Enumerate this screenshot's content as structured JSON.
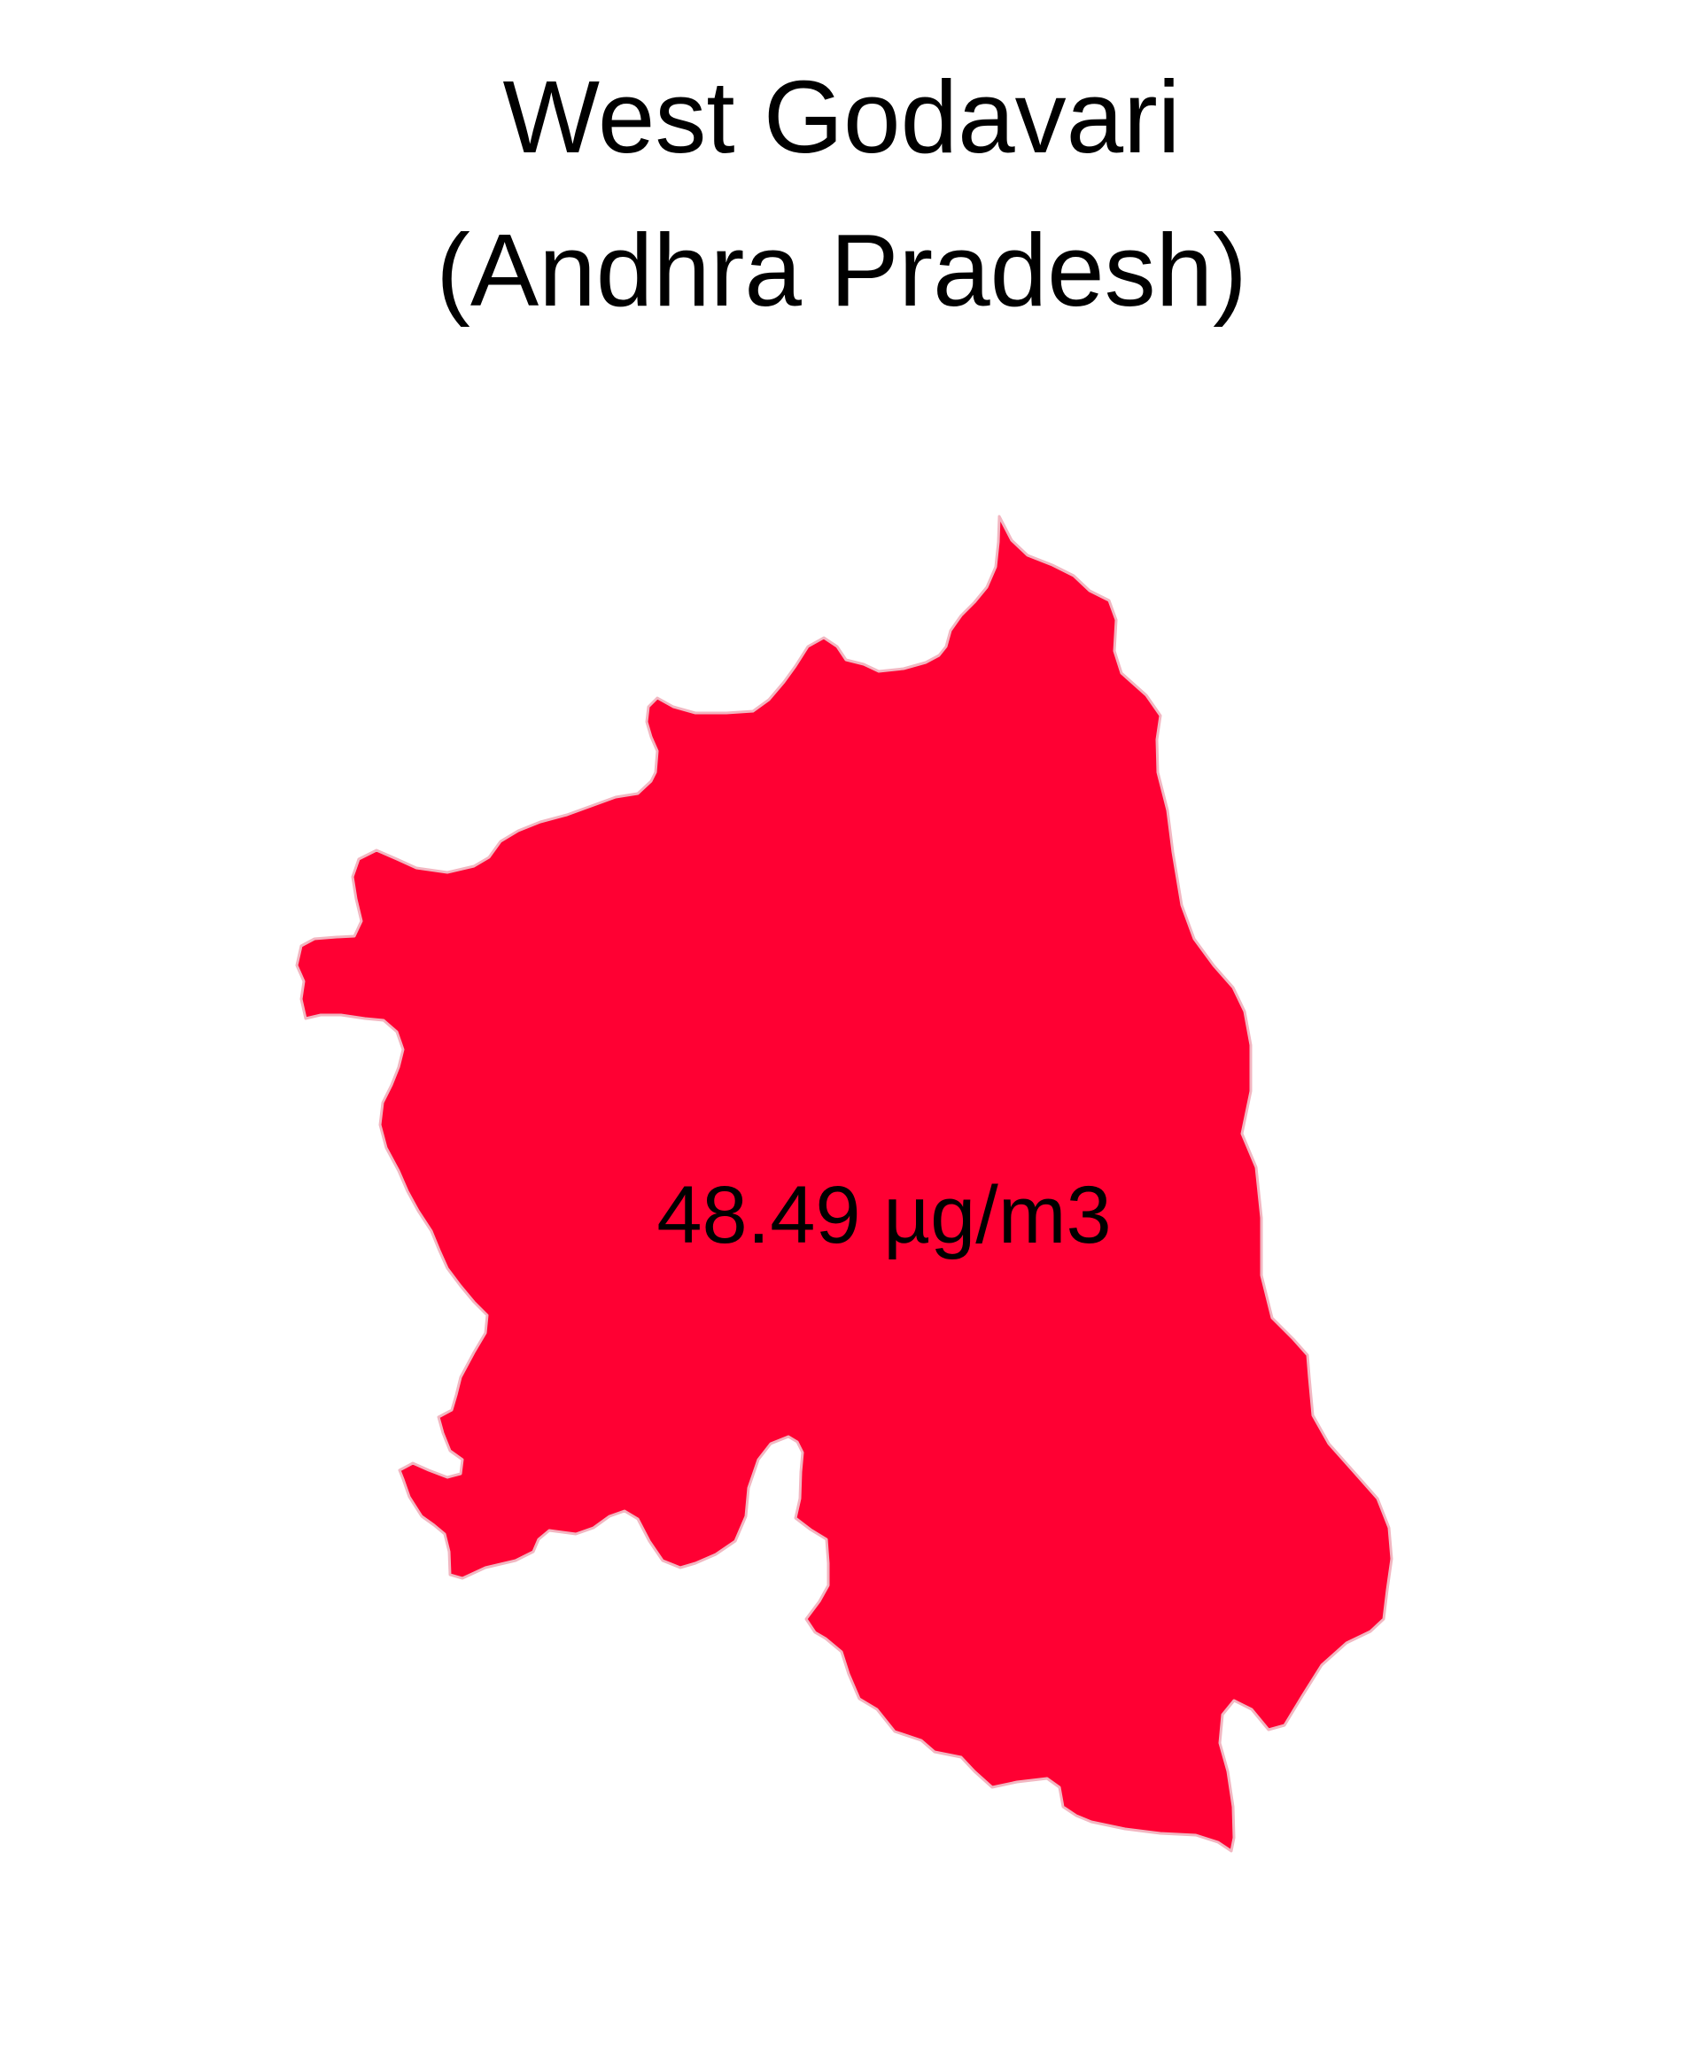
{
  "map": {
    "title_line1": "West Godavari",
    "title_line2": "(Andhra Pradesh)",
    "value_label": "48.49 µg/m3",
    "value": 48.49,
    "unit": "µg/m3",
    "fill_color": "#FF0033",
    "border_color": "#F2B6C1"
  }
}
